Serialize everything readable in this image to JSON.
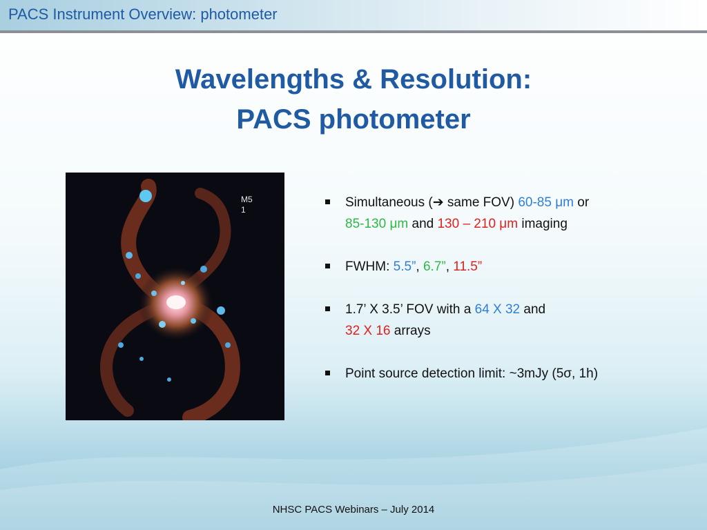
{
  "header": {
    "title": "PACS Instrument Overview: photometer"
  },
  "slide": {
    "title_line1": "Wavelengths & Resolution:",
    "title_line2": "PACS photometer"
  },
  "image": {
    "label": "M51"
  },
  "bullets": {
    "b1": {
      "t1": " Simultaneous (",
      "arrow": "➔",
      "t2": " same FOV) ",
      "r1": "60-85 μm",
      "t3": " or",
      "r2": "85-130 μm",
      "t4": " and ",
      "r3": "130 – 210 μm",
      "t5": " imaging"
    },
    "b2": {
      "t1": "FWHM: ",
      "v1": "5.5”",
      "sep1": ", ",
      "v2": "6.7”",
      "sep2": ", ",
      "v3": "11.5”"
    },
    "b3": {
      "t1": "1.7’ X 3.5’ FOV with a ",
      "a1": "64 X 32",
      "t2": " and",
      "a2": "32 X 16",
      "t3": " arrays"
    },
    "b4": {
      "text": " Point source detection limit: ~3mJy (5σ, 1h)"
    }
  },
  "footer": {
    "text": "NHSC PACS Webinars – July 2014"
  },
  "colors": {
    "title": "#1f5aa2",
    "blue": "#2f7ed8",
    "green": "#2fb844",
    "red": "#e0201c"
  }
}
